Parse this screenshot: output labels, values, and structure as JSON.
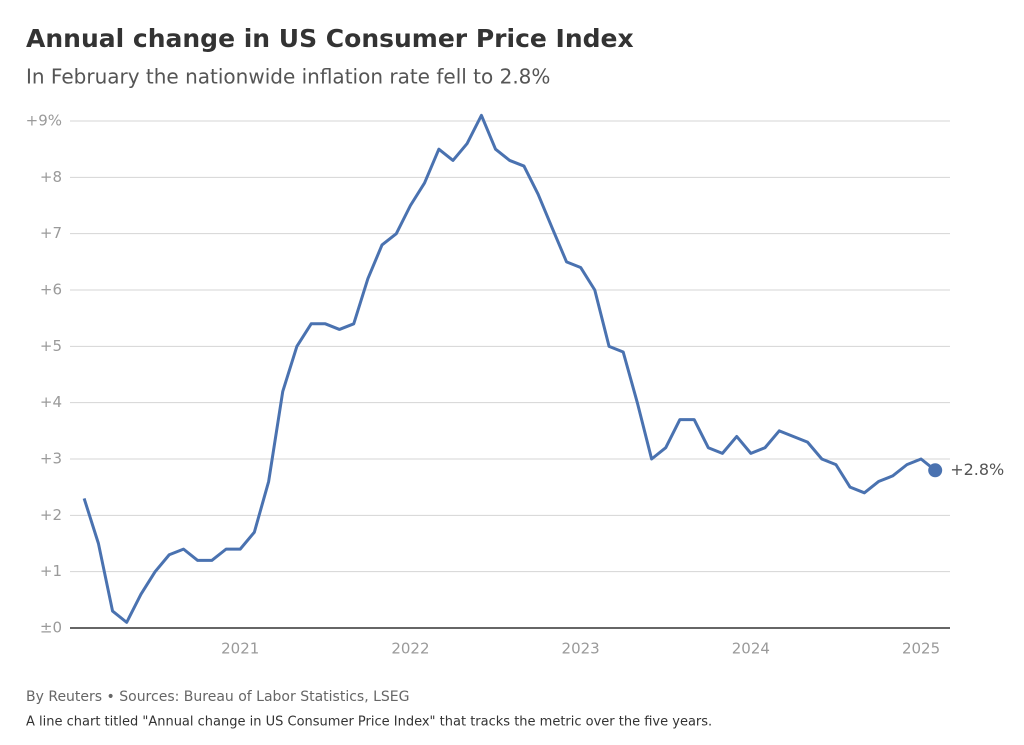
{
  "chart_data": {
    "type": "line",
    "title": "Annual change in US Consumer Price Index",
    "subtitle": "In February the nationwide inflation rate fell to 2.8%",
    "source": "By Reuters • Sources: Bureau of Labor Statistics, LSEG",
    "caption": "A line chart titled \"Annual change in US Consumer Price Index\" that tracks the metric over the five years.",
    "x": [
      2020.083,
      2020.167,
      2020.25,
      2020.333,
      2020.417,
      2020.5,
      2020.583,
      2020.667,
      2020.75,
      2020.833,
      2020.917,
      2021,
      2021.083,
      2021.167,
      2021.25,
      2021.333,
      2021.417,
      2021.5,
      2021.583,
      2021.667,
      2021.75,
      2021.833,
      2021.917,
      2022,
      2022.083,
      2022.167,
      2022.25,
      2022.333,
      2022.417,
      2022.5,
      2022.583,
      2022.667,
      2022.75,
      2022.833,
      2022.917,
      2023,
      2023.083,
      2023.167,
      2023.25,
      2023.333,
      2023.417,
      2023.5,
      2023.583,
      2023.667,
      2023.75,
      2023.833,
      2023.917,
      2024,
      2024.083,
      2024.167,
      2024.25,
      2024.333,
      2024.417,
      2024.5,
      2024.583,
      2024.667,
      2024.75,
      2024.833,
      2024.917,
      2025,
      2025.083
    ],
    "series": [
      {
        "color": "#4a72b0",
        "values": [
          2.3,
          1.5,
          0.3,
          0.1,
          0.6,
          1.0,
          1.3,
          1.4,
          1.2,
          1.2,
          1.4,
          1.4,
          1.7,
          2.6,
          4.2,
          5.0,
          5.4,
          5.4,
          5.3,
          5.4,
          6.2,
          6.8,
          7.0,
          7.5,
          7.9,
          8.5,
          8.3,
          8.6,
          9.1,
          8.5,
          8.3,
          8.2,
          7.7,
          7.1,
          6.5,
          6.4,
          6.0,
          5.0,
          4.9,
          4.0,
          3.0,
          3.2,
          3.7,
          3.7,
          3.2,
          3.1,
          3.4,
          3.1,
          3.2,
          3.5,
          3.4,
          3.3,
          3.0,
          2.9,
          2.5,
          2.4,
          2.6,
          2.7,
          2.9,
          3.0,
          2.8
        ],
        "value_labels": [
          null,
          null,
          null,
          null,
          null,
          null,
          null,
          null,
          null,
          null,
          null,
          null,
          null,
          null,
          null,
          null,
          null,
          null,
          null,
          null,
          null,
          null,
          null,
          null,
          null,
          null,
          null,
          null,
          null,
          null,
          null,
          null,
          null,
          null,
          null,
          null,
          null,
          null,
          null,
          null,
          null,
          null,
          null,
          null,
          null,
          null,
          null,
          null,
          null,
          null,
          null,
          null,
          null,
          null,
          null,
          null,
          null,
          null,
          null,
          null,
          "+2.8%"
        ]
      }
    ],
    "xlim": [
      2020,
      2025.17
    ],
    "xticks": [
      2021,
      2022,
      2023,
      2024,
      2025
    ],
    "ylim": [
      0,
      9
    ],
    "yticks": [
      {
        "value": 0,
        "label": "±0"
      },
      {
        "value": 1,
        "label": "+1"
      },
      {
        "value": 2,
        "label": "+2"
      },
      {
        "value": 3,
        "label": "+3"
      },
      {
        "value": 4,
        "label": "+4"
      },
      {
        "value": 5,
        "label": "+5"
      },
      {
        "value": 6,
        "label": "+6"
      },
      {
        "value": 7,
        "label": "+7"
      },
      {
        "value": 8,
        "label": "+8"
      },
      {
        "value": 9,
        "label": "+9%"
      }
    ],
    "grid": true
  }
}
